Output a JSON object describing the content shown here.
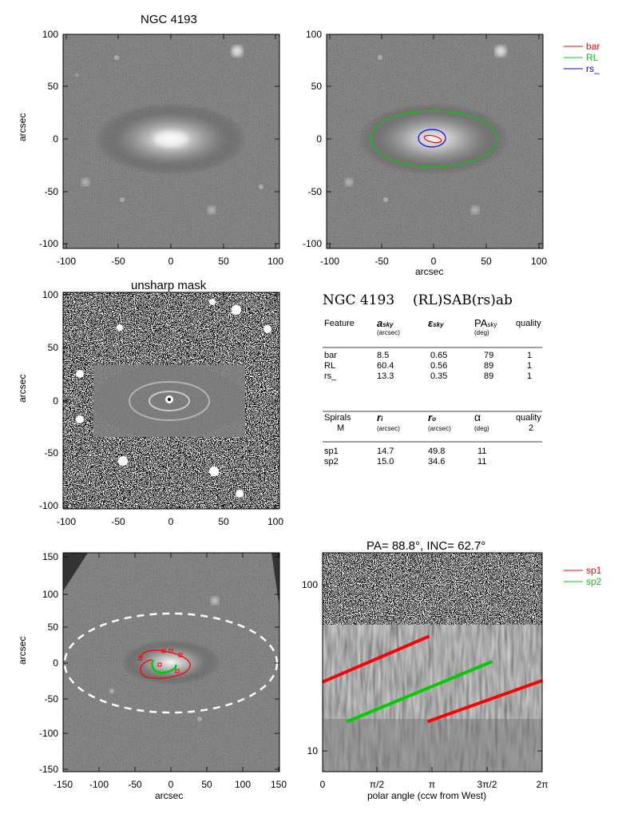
{
  "panel_top_left": {
    "title": "NGC 4193",
    "ylabel": "arcsec",
    "xticks": [
      "-100",
      "-50",
      "0",
      "50",
      "100"
    ],
    "yticks": [
      "100",
      "50",
      "0",
      "-50",
      "-100"
    ]
  },
  "panel_top_right": {
    "xlabel": "arcsec",
    "xticks": [
      "-100",
      "-50",
      "0",
      "50",
      "100"
    ],
    "yticks": [
      "100",
      "50",
      "0",
      "-50",
      "-100"
    ],
    "legend": [
      {
        "name": "bar",
        "color": "#ff0000"
      },
      {
        "name": "RL",
        "color": "#00cc00"
      },
      {
        "name": "rs_",
        "color": "#0000ff"
      }
    ]
  },
  "panel_mid_left": {
    "title": "unsharp mask",
    "ylabel": "arcsec",
    "xticks": [
      "-100",
      "-50",
      "0",
      "50",
      "100"
    ],
    "yticks": [
      "100",
      "50",
      "0",
      "-50",
      "-100"
    ]
  },
  "table": {
    "header_name": "NGC 4193",
    "header_class": "(RL)SAB(rs)ab",
    "features_header": {
      "feature": "Feature",
      "a": "a",
      "a_sub": "sky",
      "a_unit": "(arcsec)",
      "eps": "ε",
      "eps_sub": "sky",
      "pa": "PA",
      "pa_sub": "sky",
      "pa_unit": "(deg)",
      "quality": "quality"
    },
    "features": [
      {
        "name": "bar",
        "a": "8.5",
        "eps": "0.65",
        "pa": "79",
        "quality": "1"
      },
      {
        "name": "RL",
        "a": "60.4",
        "eps": "0.56",
        "pa": "89",
        "quality": "1"
      },
      {
        "name": "rs_",
        "a": "13.3",
        "eps": "0.35",
        "pa": "89",
        "quality": "1"
      }
    ],
    "spirals_header": {
      "label": "Spirals",
      "m_label": "M",
      "ri": "r",
      "ri_sub": "i",
      "ri_unit": "(arcsec)",
      "ro": "r",
      "ro_sub": "o",
      "ro_unit": "(arcsec)",
      "alpha": "α",
      "alpha_unit": "(deg)",
      "quality": "quality",
      "quality_val": "2"
    },
    "spirals": [
      {
        "name": "sp1",
        "ri": "14.7",
        "ro": "49.8",
        "alpha": "11"
      },
      {
        "name": "sp2",
        "ri": "15.0",
        "ro": "34.6",
        "alpha": "11"
      }
    ]
  },
  "panel_bot_left": {
    "ylabel": "arcsec",
    "xlabel": "arcsec",
    "xticks": [
      "-150",
      "-100",
      "-50",
      "0",
      "50",
      "100",
      "150"
    ],
    "yticks": [
      "150",
      "100",
      "50",
      "0",
      "-50",
      "-100",
      "-150"
    ]
  },
  "panel_bot_right": {
    "title": "PA=  88.8°, INC=  62.7°",
    "xlabel": "polar angle (ccw from West)",
    "xticks": [
      "0",
      "π/2",
      "π",
      "3π/2",
      "2π"
    ],
    "yticks": [
      "100",
      "10"
    ],
    "legend": [
      {
        "name": "sp1",
        "color": "#ff0000"
      },
      {
        "name": "sp2",
        "color": "#00cc00"
      }
    ]
  },
  "chart_data": {
    "type": "line",
    "title": "PA=  88.8°, INC=  62.7°",
    "xlabel": "polar angle (ccw from West)",
    "ylabel": "",
    "xlim": [
      0,
      6.2832
    ],
    "ylim": [
      8,
      150
    ],
    "yscale": "log",
    "series": [
      {
        "name": "sp1",
        "color": "#ff0000",
        "segments": [
          {
            "x": [
              0.0,
              3.05
            ],
            "y": [
              26.0,
              49.0
            ]
          },
          {
            "x": [
              3.0,
              6.2832
            ],
            "y": [
              15.0,
              26.5
            ]
          }
        ]
      },
      {
        "name": "sp2",
        "color": "#00cc00",
        "segments": [
          {
            "x": [
              0.7,
              4.85
            ],
            "y": [
              15.0,
              34.5
            ]
          }
        ]
      }
    ]
  }
}
